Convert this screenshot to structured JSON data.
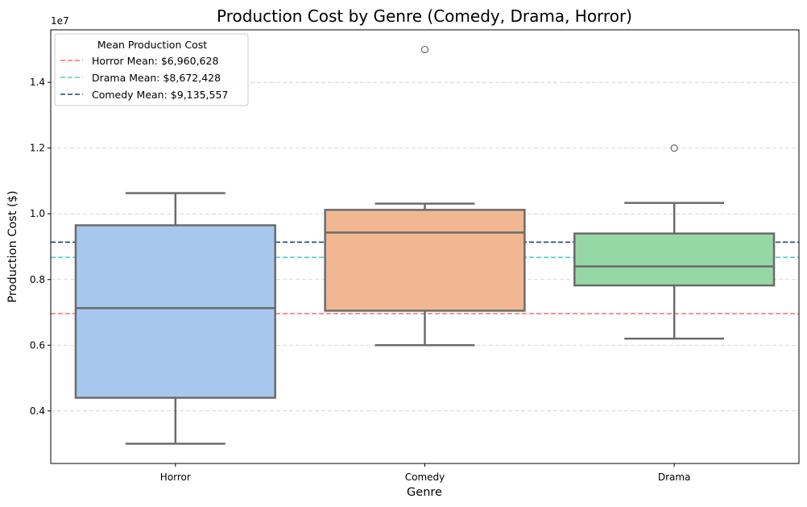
{
  "chart_data": {
    "type": "box",
    "title": "Production Cost by Genre (Comedy, Drama, Horror)",
    "xlabel": "Genre",
    "ylabel": "Production Cost ($)",
    "y_offset_label": "1e7",
    "ylim": [
      2400000,
      15600000
    ],
    "yticks": [
      4000000,
      6000000,
      8000000,
      10000000,
      12000000,
      14000000
    ],
    "ytick_labels": [
      "0.4",
      "0.6",
      "0.8",
      "1.0",
      "1.2",
      "1.4"
    ],
    "grid": "y-dashed",
    "categories": [
      "Horror",
      "Comedy",
      "Drama"
    ],
    "boxes": [
      {
        "category": "Horror",
        "whisker_low": 3000000,
        "q1": 4400000,
        "median": 7130000,
        "q3": 9650000,
        "whisker_high": 10630000,
        "outliers": [],
        "color": "#a7c8ee"
      },
      {
        "category": "Comedy",
        "whisker_low": 6000000,
        "q1": 7050000,
        "median": 9430000,
        "q3": 10120000,
        "whisker_high": 10310000,
        "outliers": [
          15000000
        ],
        "color": "#f0b792"
      },
      {
        "category": "Drama",
        "whisker_low": 6200000,
        "q1": 7820000,
        "median": 8400000,
        "q3": 9400000,
        "whisker_high": 10330000,
        "outliers": [
          12000000
        ],
        "color": "#95d8a6"
      }
    ],
    "mean_lines": [
      {
        "label": "Horror Mean: $6,960,628",
        "value": 6960628,
        "color": "#ff6b6b"
      },
      {
        "label": "Drama Mean: $8,672,428",
        "value": 8672428,
        "color": "#4ecdc4"
      },
      {
        "label": "Comedy Mean: $9,135,557",
        "value": 9135557,
        "color": "#1a4a63"
      }
    ],
    "legend": {
      "title": "Mean Production Cost",
      "placement": "top-left"
    }
  }
}
